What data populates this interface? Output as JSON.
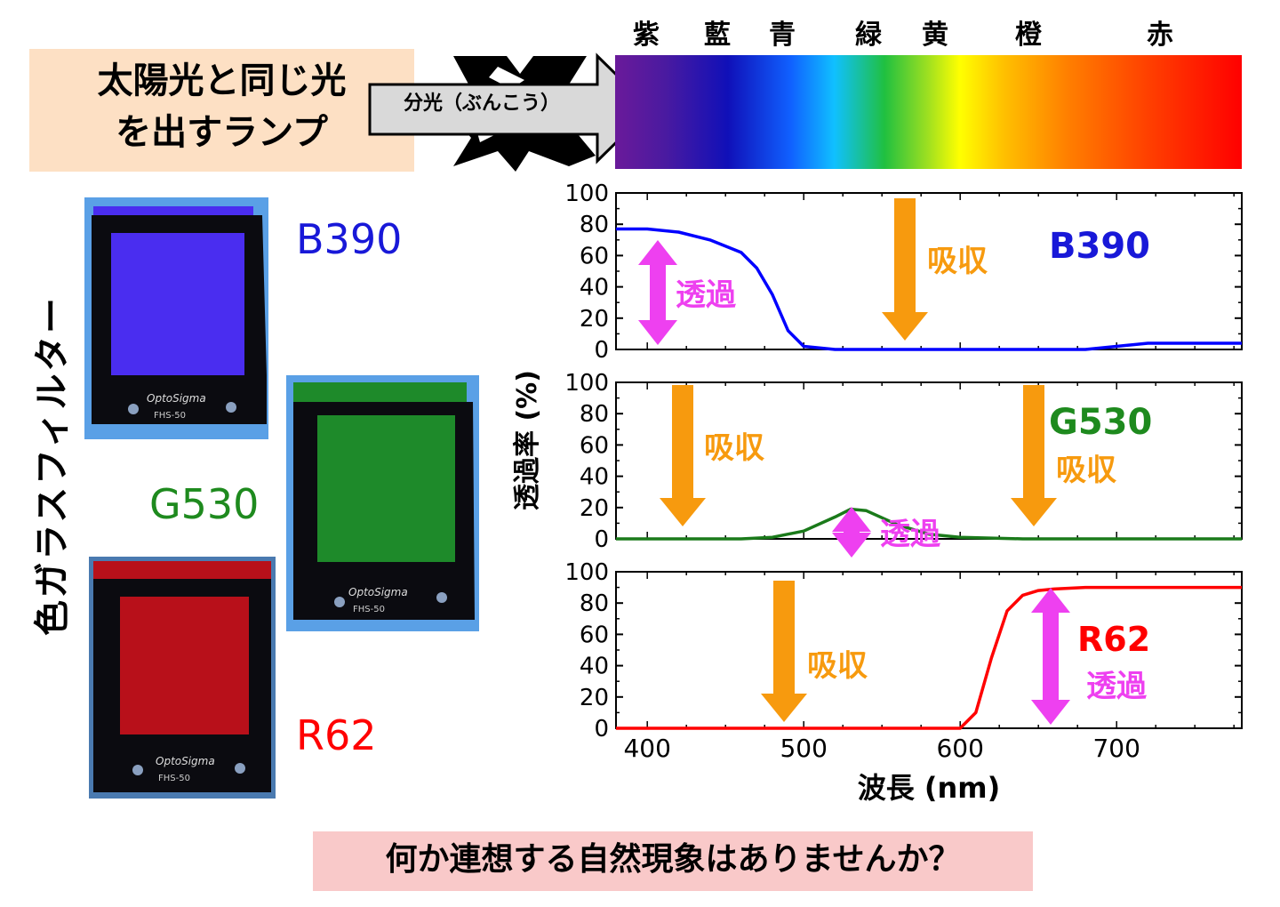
{
  "top": {
    "lamp_label_line1": "太陽光と同じ光",
    "lamp_label_line2": "を出すランプ",
    "arrow_label": "分光（ぶんこう）",
    "spectrum_colors": [
      {
        "label": "紫",
        "color": "#7030a0"
      },
      {
        "label": "藍",
        "color": "#1f1fa8"
      },
      {
        "label": "青",
        "color": "#0070c0"
      },
      {
        "label": "緑",
        "color": "#00a050"
      },
      {
        "label": "黄",
        "color": "#e8e800"
      },
      {
        "label": "橙",
        "color": "#f0a000"
      },
      {
        "label": "赤",
        "color": "#ff0000"
      }
    ]
  },
  "left": {
    "vertical_label": "色ガラスフィルター",
    "filters": [
      {
        "name": "B390",
        "color": "#1818d8",
        "glass": "#4a2df0"
      },
      {
        "name": "G530",
        "color": "#1e8a1e",
        "glass": "#1e8a2a"
      },
      {
        "name": "R62",
        "color": "#ff0000",
        "glass": "#b8101a"
      }
    ],
    "brand": "OptoSigma",
    "model": "FHS-50"
  },
  "annotations": {
    "absorb": "吸収",
    "transmit": "透過"
  },
  "question": "何か連想する自然現象はありませんか？",
  "chart_data": [
    {
      "type": "line",
      "series": [
        {
          "name": "B390",
          "color": "#0000ff",
          "x": [
            380,
            400,
            420,
            440,
            460,
            470,
            480,
            490,
            500,
            520,
            600,
            680,
            700,
            720,
            760,
            780
          ],
          "y": [
            77,
            77,
            75,
            70,
            62,
            52,
            35,
            12,
            2,
            0,
            0,
            0,
            2,
            4,
            4,
            4
          ]
        }
      ],
      "xlim": [
        380,
        780
      ],
      "ylim": [
        0,
        100
      ],
      "yticks": [
        "0",
        "20",
        "40",
        "60",
        "80",
        "100"
      ],
      "labels": {
        "name": "B390",
        "absorb": "吸収",
        "transmit": "透過"
      }
    },
    {
      "type": "line",
      "series": [
        {
          "name": "G530",
          "color": "#1a7a1a",
          "x": [
            380,
            460,
            480,
            500,
            520,
            530,
            540,
            560,
            580,
            600,
            640,
            780
          ],
          "y": [
            0,
            0,
            1,
            5,
            14,
            19,
            18,
            9,
            3,
            1,
            0,
            0
          ]
        }
      ],
      "xlim": [
        380,
        780
      ],
      "ylim": [
        0,
        100
      ],
      "yticks": [
        "0",
        "20",
        "40",
        "60",
        "80",
        "100"
      ],
      "labels": {
        "name": "G530",
        "absorb": "吸収",
        "transmit": "透過"
      }
    },
    {
      "type": "line",
      "series": [
        {
          "name": "R62",
          "color": "#ff0000",
          "x": [
            380,
            600,
            610,
            620,
            630,
            640,
            650,
            660,
            680,
            780
          ],
          "y": [
            0,
            0,
            10,
            45,
            75,
            85,
            88,
            89,
            90,
            90
          ]
        }
      ],
      "xlim": [
        380,
        780
      ],
      "ylim": [
        0,
        100
      ],
      "yticks": [
        "0",
        "20",
        "40",
        "60",
        "80",
        "100"
      ],
      "xticks": [
        "400",
        "500",
        "600",
        "700"
      ],
      "labels": {
        "name": "R62",
        "absorb": "吸収",
        "transmit": "透過"
      }
    }
  ],
  "axes": {
    "ylabel": "透過率 (%)",
    "xlabel": "波長 (nm)"
  }
}
